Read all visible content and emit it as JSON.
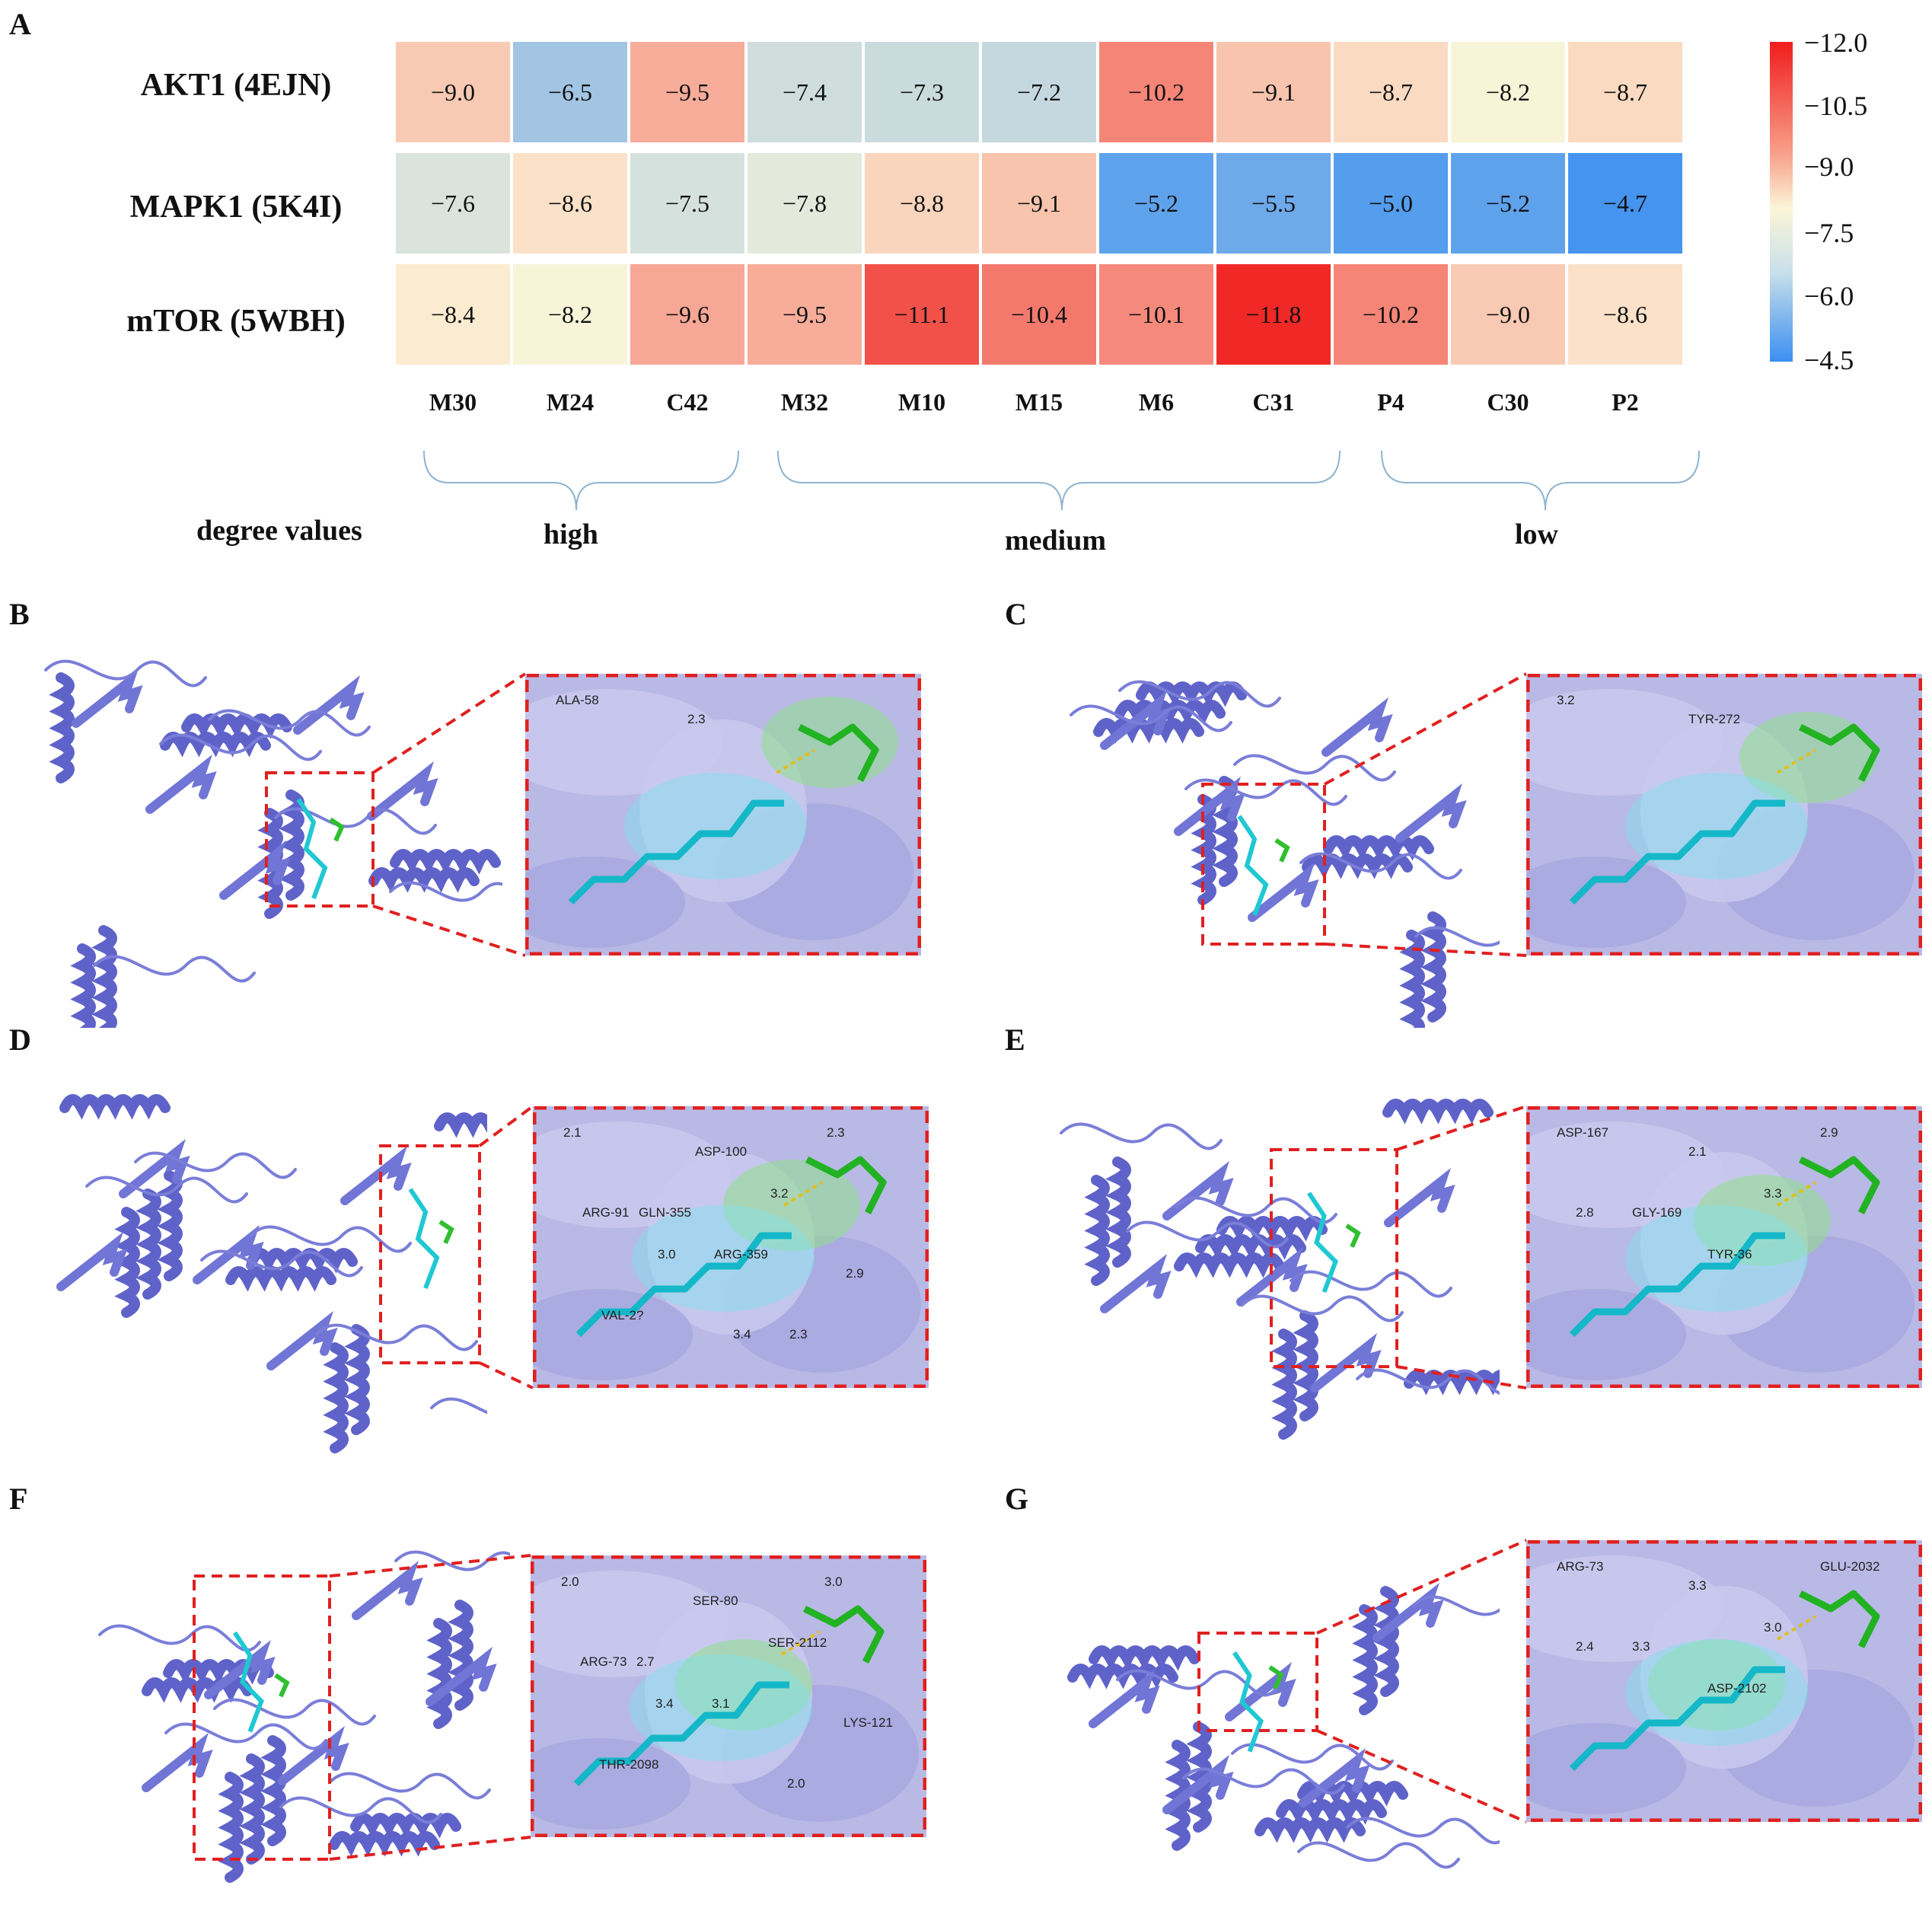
{
  "panels": {
    "a": "A",
    "b": "B",
    "c": "C",
    "d": "D",
    "e": "E",
    "f": "F",
    "g": "G"
  },
  "heatmap": {
    "rows": [
      "AKT1 (4EJN)",
      "MAPK1 (5K4I)",
      "mTOR (5WBH)"
    ],
    "columns": [
      "M30",
      "M24",
      "C42",
      "M32",
      "M10",
      "M15",
      "M6",
      "C31",
      "P4",
      "C30",
      "P2"
    ],
    "cells": [
      [
        "−9.0",
        "−6.5",
        "−9.5",
        "−7.4",
        "−7.3",
        "−7.2",
        "−10.2",
        "−9.1",
        "−8.7",
        "−8.2",
        "−8.7"
      ],
      [
        "−7.6",
        "−8.6",
        "−7.5",
        "−7.8",
        "−8.8",
        "−9.1",
        "−5.2",
        "−5.5",
        "−5.0",
        "−5.2",
        "−4.7"
      ],
      [
        "−8.4",
        "−8.2",
        "−9.6",
        "−9.5",
        "−11.1",
        "−10.4",
        "−10.1",
        "−11.8",
        "−10.2",
        "−9.0",
        "−8.6"
      ]
    ],
    "values": [
      [
        -9.0,
        -6.5,
        -9.5,
        -7.4,
        -7.3,
        -7.2,
        -10.2,
        -9.1,
        -8.7,
        -8.2,
        -8.7
      ],
      [
        -7.6,
        -8.6,
        -7.5,
        -7.8,
        -8.8,
        -9.1,
        -5.2,
        -5.5,
        -5.0,
        -5.2,
        -4.7
      ],
      [
        -8.4,
        -8.2,
        -9.6,
        -9.5,
        -11.1,
        -10.4,
        -10.1,
        -11.8,
        -10.2,
        -9.0,
        -8.6
      ]
    ],
    "colorbar_ticks": [
      "−12.0",
      "−10.5",
      "−9.0",
      "−7.5",
      "−6.0",
      "−4.5"
    ],
    "colorbar_range": [
      -12.0,
      -4.5
    ],
    "colors": {
      "low": "#3b8ff0",
      "mid": "#fbf5d8",
      "high": "#ef1d1d"
    },
    "degree_title": "degree values",
    "groups": [
      "high",
      "medium",
      "low"
    ]
  },
  "chart_data": {
    "type": "heatmap",
    "title": "",
    "x": [
      "M30",
      "M24",
      "C42",
      "M32",
      "M10",
      "M15",
      "M6",
      "C31",
      "P4",
      "C30",
      "P2"
    ],
    "y": [
      "AKT1 (4EJN)",
      "MAPK1 (5K4I)",
      "mTOR (5WBH)"
    ],
    "values": [
      [
        -9.0,
        -6.5,
        -9.5,
        -7.4,
        -7.3,
        -7.2,
        -10.2,
        -9.1,
        -8.7,
        -8.2,
        -8.7
      ],
      [
        -7.6,
        -8.6,
        -7.5,
        -7.8,
        -8.8,
        -9.1,
        -5.2,
        -5.5,
        -5.0,
        -5.2,
        -4.7
      ],
      [
        -8.4,
        -8.2,
        -9.6,
        -9.5,
        -11.1,
        -10.4,
        -10.1,
        -11.8,
        -10.2,
        -9.0,
        -8.6
      ]
    ],
    "colorbar_range": [
      -12.0,
      -4.5
    ]
  },
  "docking": {
    "B": {
      "labels": [
        "ALA-58",
        "2.3"
      ]
    },
    "C": {
      "labels": [
        "3.2",
        "TYR-272"
      ]
    },
    "D": {
      "labels": [
        "2.1",
        "ASP-100",
        "2.3",
        "GLN-355",
        "3.2",
        "ARG-91",
        "ARG-359",
        "2.9",
        "3.0",
        "2.3",
        "VAL-2?",
        "3.4"
      ]
    },
    "E": {
      "labels": [
        "ASP-167",
        "2.1",
        "2.9",
        "GLY-169",
        "3.3",
        "2.8",
        "TYR-36"
      ]
    },
    "F": {
      "labels": [
        "2.0",
        "SER-80",
        "3.0",
        "2.7",
        "SER-2112",
        "ARG-73",
        "3.1",
        "LYS-121",
        "3.4",
        "2.0",
        "THR-2098"
      ]
    },
    "G": {
      "labels": [
        "ARG-73",
        "3.3",
        "GLU-2032",
        "3.3",
        "3.0",
        "2.4",
        "ASP-2102"
      ]
    }
  }
}
